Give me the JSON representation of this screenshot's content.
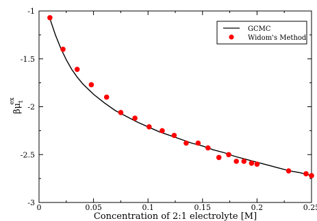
{
  "chart_data": {
    "type": "line",
    "title": "",
    "xlabel": "Concentration of 2:1 electrolyte [M]",
    "ylabel": "βμ_t^ex",
    "ylabel_parts": {
      "base": "βμ",
      "subscript": "t",
      "superscript": "ex"
    },
    "xlim": [
      0,
      0.25
    ],
    "ylim": [
      -3,
      -1
    ],
    "x_ticks": [
      0,
      0.05,
      0.1,
      0.15,
      0.2,
      0.25
    ],
    "x_tick_labels": [
      "0",
      "0.05",
      "0.1",
      "0.15",
      "0.2",
      "0.25"
    ],
    "y_ticks": [
      -3,
      -2.5,
      -2,
      -1.5,
      -1
    ],
    "y_tick_labels": [
      "-3",
      "-2.5",
      "-2",
      "-1.5",
      "-1"
    ],
    "grid": false,
    "legend_position": "top-right",
    "series": [
      {
        "name": "GCMC",
        "style": "line",
        "color": "#000000",
        "x": [
          0.01,
          0.015,
          0.02,
          0.025,
          0.03,
          0.035,
          0.04,
          0.05,
          0.06,
          0.07,
          0.08,
          0.09,
          0.1,
          0.11,
          0.12,
          0.13,
          0.14,
          0.15,
          0.16,
          0.17,
          0.18,
          0.19,
          0.2,
          0.21,
          0.22,
          0.23,
          0.24,
          0.25
        ],
        "y": [
          -1.08,
          -1.25,
          -1.39,
          -1.51,
          -1.61,
          -1.69,
          -1.76,
          -1.87,
          -1.96,
          -2.04,
          -2.1,
          -2.16,
          -2.21,
          -2.26,
          -2.3,
          -2.34,
          -2.38,
          -2.41,
          -2.45,
          -2.48,
          -2.52,
          -2.55,
          -2.58,
          -2.61,
          -2.64,
          -2.67,
          -2.69,
          -2.72
        ]
      },
      {
        "name": "Widom's Method",
        "style": "scatter",
        "color": "#ff0000",
        "x": [
          0.01,
          0.022,
          0.035,
          0.048,
          0.062,
          0.075,
          0.088,
          0.101,
          0.113,
          0.124,
          0.135,
          0.146,
          0.155,
          0.165,
          0.174,
          0.181,
          0.188,
          0.195,
          0.2,
          0.229,
          0.245,
          0.25
        ],
        "y": [
          -1.07,
          -1.4,
          -1.61,
          -1.77,
          -1.9,
          -2.06,
          -2.12,
          -2.21,
          -2.25,
          -2.3,
          -2.38,
          -2.38,
          -2.43,
          -2.53,
          -2.5,
          -2.57,
          -2.57,
          -2.59,
          -2.6,
          -2.67,
          -2.7,
          -2.72
        ]
      }
    ]
  }
}
